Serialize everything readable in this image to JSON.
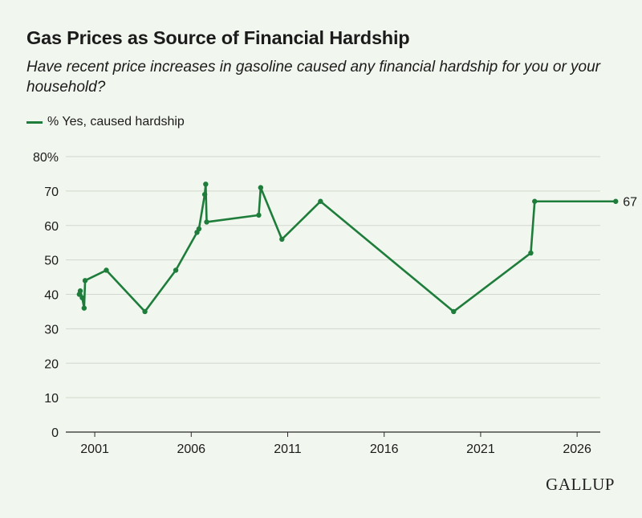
{
  "chart_data": {
    "type": "line",
    "title": "Gas Prices as Source of Financial Hardship",
    "subtitle": "Have recent price increases in gasoline caused any financial hardship for you or your household?",
    "xlabel": "",
    "ylabel": "",
    "xlim": [
      1999.5,
      2026.7
    ],
    "ylim": [
      0,
      80
    ],
    "x_ticks": [
      2001,
      2006,
      2011,
      2016,
      2021,
      2026
    ],
    "y_ticks": [
      0,
      10,
      20,
      30,
      40,
      50,
      60,
      70,
      80
    ],
    "y_tick_labels": [
      "0",
      "10",
      "20",
      "30",
      "40",
      "50",
      "60",
      "70",
      "80%"
    ],
    "grid": true,
    "legend_position": "top-left",
    "series": [
      {
        "name": "% Yes, caused hardship",
        "color": "#1e7d3b",
        "end_label": "67",
        "points": [
          {
            "x": 2000.2,
            "y": 40
          },
          {
            "x": 2000.25,
            "y": 41
          },
          {
            "x": 2000.35,
            "y": 39
          },
          {
            "x": 2000.45,
            "y": 36
          },
          {
            "x": 2000.5,
            "y": 44
          },
          {
            "x": 2001.6,
            "y": 47
          },
          {
            "x": 2003.6,
            "y": 35
          },
          {
            "x": 2005.2,
            "y": 47
          },
          {
            "x": 2006.3,
            "y": 58
          },
          {
            "x": 2006.4,
            "y": 59
          },
          {
            "x": 2006.7,
            "y": 69
          },
          {
            "x": 2006.75,
            "y": 72
          },
          {
            "x": 2006.8,
            "y": 61
          },
          {
            "x": 2009.5,
            "y": 63
          },
          {
            "x": 2009.6,
            "y": 71
          },
          {
            "x": 2010.7,
            "y": 56
          },
          {
            "x": 2012.7,
            "y": 67
          },
          {
            "x": 2019.6,
            "y": 35
          },
          {
            "x": 2023.6,
            "y": 52
          },
          {
            "x": 2023.8,
            "y": 67
          },
          {
            "x": 2028.0,
            "y": 67
          }
        ]
      }
    ]
  },
  "logo": "GALLUP",
  "colors": {
    "background": "#f1f6ee",
    "grid": "#d3d8cf",
    "line": "#1e7d3b"
  }
}
